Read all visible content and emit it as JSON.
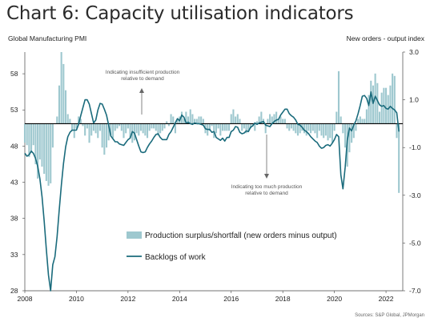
{
  "title": "Chart 6: Capacity utilisation indicators",
  "left_axis_title": "Global Manufacturing PMI",
  "right_axis_title": "New orders - output index",
  "source": "Sources: S&P Global, JPMorgan",
  "colors": {
    "bars": "#9ec8cf",
    "line": "#1a6b7c",
    "zero_line": "#000000"
  },
  "chart_data": {
    "type": "bar",
    "left_axis": {
      "ylim": [
        28,
        61
      ],
      "ticks": [
        28,
        33,
        38,
        43,
        48,
        53,
        58
      ]
    },
    "right_axis": {
      "ylim": [
        -7.0,
        3.0
      ],
      "ticks": [
        "3.0",
        "1.0",
        "-1.0",
        "-3.0",
        "-5.0",
        "-7.0"
      ],
      "tick_values": [
        3,
        1,
        -1,
        -3,
        -5,
        -7
      ]
    },
    "x_ticks": [
      "2008",
      "2010",
      "2012",
      "2014",
      "2016",
      "2018",
      "2020",
      "2022"
    ],
    "xlim": [
      2008.0,
      2022.65
    ],
    "legend": {
      "placement": "bottom-center"
    },
    "annotations": [
      {
        "lines": [
          "Indicating insufficient production",
          "relative to demand"
        ]
      },
      {
        "lines": [
          "Indicating too much production",
          "relative to demand"
        ]
      }
    ],
    "series": [
      {
        "name": "Production surplus/shortfall (new orders minus output)",
        "kind": "bar",
        "axis": "right",
        "x": [
          2008.0,
          2008.083,
          2008.167,
          2008.25,
          2008.333,
          2008.417,
          2008.5,
          2008.583,
          2008.667,
          2008.75,
          2008.833,
          2008.917,
          2009.0,
          2009.083,
          2009.167,
          2009.25,
          2009.333,
          2009.417,
          2009.5,
          2009.583,
          2009.667,
          2009.75,
          2009.833,
          2009.917,
          2010.0,
          2010.083,
          2010.167,
          2010.25,
          2010.333,
          2010.417,
          2010.5,
          2010.583,
          2010.667,
          2010.75,
          2010.833,
          2010.917,
          2011.0,
          2011.083,
          2011.167,
          2011.25,
          2011.333,
          2011.417,
          2011.5,
          2011.583,
          2011.667,
          2011.75,
          2011.833,
          2011.917,
          2012.0,
          2012.083,
          2012.167,
          2012.25,
          2012.333,
          2012.417,
          2012.5,
          2012.583,
          2012.667,
          2012.75,
          2012.833,
          2012.917,
          2013.0,
          2013.083,
          2013.167,
          2013.25,
          2013.333,
          2013.417,
          2013.5,
          2013.583,
          2013.667,
          2013.75,
          2013.833,
          2013.917,
          2014.0,
          2014.083,
          2014.167,
          2014.25,
          2014.333,
          2014.417,
          2014.5,
          2014.583,
          2014.667,
          2014.75,
          2014.833,
          2014.917,
          2015.0,
          2015.083,
          2015.167,
          2015.25,
          2015.333,
          2015.417,
          2015.5,
          2015.583,
          2015.667,
          2015.75,
          2015.833,
          2015.917,
          2016.0,
          2016.083,
          2016.167,
          2016.25,
          2016.333,
          2016.417,
          2016.5,
          2016.583,
          2016.667,
          2016.75,
          2016.833,
          2016.917,
          2017.0,
          2017.083,
          2017.167,
          2017.25,
          2017.333,
          2017.417,
          2017.5,
          2017.583,
          2017.667,
          2017.75,
          2017.833,
          2017.917,
          2018.0,
          2018.083,
          2018.167,
          2018.25,
          2018.333,
          2018.417,
          2018.5,
          2018.583,
          2018.667,
          2018.75,
          2018.833,
          2018.917,
          2019.0,
          2019.083,
          2019.167,
          2019.25,
          2019.333,
          2019.417,
          2019.5,
          2019.583,
          2019.667,
          2019.75,
          2019.833,
          2019.917,
          2020.0,
          2020.083,
          2020.167,
          2020.25,
          2020.333,
          2020.417,
          2020.5,
          2020.583,
          2020.667,
          2020.75,
          2020.833,
          2020.917,
          2021.0,
          2021.083,
          2021.167,
          2021.25,
          2021.333,
          2021.417,
          2021.5,
          2021.583,
          2021.667,
          2021.75,
          2021.833,
          2021.917,
          2022.0,
          2022.083,
          2022.167,
          2022.25,
          2022.333,
          2022.417,
          2022.5
        ],
        "values": [
          -0.8,
          -0.9,
          -1.4,
          -1.2,
          -0.9,
          -1.7,
          -2.3,
          -1.5,
          -1.8,
          -2.1,
          -2.4,
          -2.6,
          -2.5,
          -1.0,
          0.0,
          0.3,
          1.6,
          3.0,
          2.5,
          1.4,
          0.4,
          0.2,
          -0.3,
          -0.6,
          -0.2,
          0.3,
          0.2,
          -0.1,
          -0.5,
          -0.2,
          -0.8,
          -0.5,
          -0.3,
          -0.4,
          -0.6,
          -0.3,
          -1.0,
          -1.3,
          -1.0,
          -0.7,
          -0.5,
          -0.6,
          -0.3,
          -0.2,
          -0.1,
          -0.3,
          -0.6,
          -0.4,
          -0.2,
          -0.6,
          -0.8,
          -0.7,
          -0.4,
          -0.5,
          -0.3,
          -0.4,
          -0.5,
          -0.6,
          -0.3,
          -0.2,
          -0.2,
          -0.3,
          -0.5,
          -0.4,
          -0.3,
          -0.2,
          0.1,
          -0.1,
          0.4,
          0.3,
          -0.4,
          0.2,
          0.3,
          0.5,
          0.2,
          0.5,
          0.3,
          0.6,
          0.4,
          0.2,
          0.2,
          0.3,
          0.3,
          0.2,
          -0.4,
          -0.5,
          -0.3,
          -0.1,
          -0.6,
          -0.4,
          -0.2,
          -0.5,
          -0.3,
          -0.3,
          -0.3,
          -0.3,
          0.4,
          0.6,
          0.3,
          0.4,
          0.2,
          -0.3,
          -0.2,
          -0.4,
          -0.3,
          -0.2,
          -0.1,
          -0.3,
          0.1,
          0.3,
          0.5,
          0.2,
          -0.4,
          0.2,
          0.4,
          0.3,
          0.4,
          0.5,
          0.2,
          0.3,
          0.2,
          0.2,
          -0.2,
          -0.3,
          -0.2,
          -0.3,
          -0.4,
          -0.5,
          -0.4,
          -0.3,
          -0.4,
          -0.5,
          -0.3,
          -0.4,
          -0.3,
          -0.4,
          -0.6,
          -0.3,
          -0.5,
          -0.6,
          -0.5,
          -0.7,
          -0.6,
          -0.8,
          -0.3,
          0.5,
          2.2,
          0.3,
          -0.4,
          -1.0,
          -1.8,
          -1.2,
          -0.8,
          -0.6,
          -0.3,
          0.2,
          0.3,
          0.2,
          0.2,
          0.6,
          1.2,
          1.8,
          1.6,
          2.1,
          1.7,
          0.5,
          1.3,
          1.5,
          1.5,
          1.2,
          1.6,
          2.1,
          2.0,
          -0.6,
          -2.9
        ]
      },
      {
        "name": "Backlogs of work",
        "kind": "line",
        "axis": "left",
        "x": [
          2008.0,
          2008.083,
          2008.167,
          2008.25,
          2008.333,
          2008.417,
          2008.5,
          2008.583,
          2008.667,
          2008.75,
          2008.833,
          2008.917,
          2009.0,
          2009.083,
          2009.167,
          2009.25,
          2009.333,
          2009.417,
          2009.5,
          2009.583,
          2009.667,
          2009.75,
          2009.833,
          2009.917,
          2010.0,
          2010.083,
          2010.167,
          2010.25,
          2010.333,
          2010.417,
          2010.5,
          2010.583,
          2010.667,
          2010.75,
          2010.833,
          2010.917,
          2011.0,
          2011.083,
          2011.167,
          2011.25,
          2011.333,
          2011.417,
          2011.5,
          2011.583,
          2011.667,
          2011.75,
          2011.833,
          2011.917,
          2012.0,
          2012.083,
          2012.167,
          2012.25,
          2012.333,
          2012.417,
          2012.5,
          2012.583,
          2012.667,
          2012.75,
          2012.833,
          2012.917,
          2013.0,
          2013.083,
          2013.167,
          2013.25,
          2013.333,
          2013.417,
          2013.5,
          2013.583,
          2013.667,
          2013.75,
          2013.833,
          2013.917,
          2014.0,
          2014.083,
          2014.167,
          2014.25,
          2014.333,
          2014.417,
          2014.5,
          2014.583,
          2014.667,
          2014.75,
          2014.833,
          2014.917,
          2015.0,
          2015.083,
          2015.167,
          2015.25,
          2015.333,
          2015.417,
          2015.5,
          2015.583,
          2015.667,
          2015.75,
          2015.833,
          2015.917,
          2016.0,
          2016.083,
          2016.167,
          2016.25,
          2016.333,
          2016.417,
          2016.5,
          2016.583,
          2016.667,
          2016.75,
          2016.833,
          2016.917,
          2017.0,
          2017.083,
          2017.167,
          2017.25,
          2017.333,
          2017.417,
          2017.5,
          2017.583,
          2017.667,
          2017.75,
          2017.833,
          2017.917,
          2018.0,
          2018.083,
          2018.167,
          2018.25,
          2018.333,
          2018.417,
          2018.5,
          2018.583,
          2018.667,
          2018.75,
          2018.833,
          2018.917,
          2019.0,
          2019.083,
          2019.167,
          2019.25,
          2019.333,
          2019.417,
          2019.5,
          2019.583,
          2019.667,
          2019.75,
          2019.833,
          2019.917,
          2020.0,
          2020.083,
          2020.167,
          2020.25,
          2020.333,
          2020.417,
          2020.5,
          2020.583,
          2020.667,
          2020.75,
          2020.833,
          2020.917,
          2021.0,
          2021.083,
          2021.167,
          2021.25,
          2021.333,
          2021.417,
          2021.5,
          2021.583,
          2021.667,
          2021.75,
          2021.833,
          2021.917,
          2022.0,
          2022.083,
          2022.167,
          2022.25,
          2022.333,
          2022.417,
          2022.5
        ],
        "values": [
          47.0,
          46.6,
          46.8,
          47.3,
          47.0,
          46.3,
          45.2,
          43.5,
          41.0,
          37.6,
          33.8,
          30.2,
          28.0,
          31.6,
          32.7,
          35.5,
          39.1,
          42.7,
          45.6,
          47.9,
          49.3,
          49.9,
          50.2,
          50.2,
          50.2,
          51.0,
          52.2,
          53.3,
          54.4,
          54.4,
          53.8,
          52.5,
          51.2,
          51.6,
          53.0,
          53.9,
          53.8,
          53.1,
          52.3,
          50.9,
          49.4,
          49.0,
          48.6,
          48.6,
          48.3,
          48.2,
          48.1,
          48.5,
          48.9,
          49.1,
          50.0,
          49.8,
          48.9,
          48.0,
          47.2,
          47.1,
          47.2,
          47.8,
          48.3,
          48.7,
          49.2,
          49.6,
          49.7,
          49.2,
          48.9,
          48.9,
          48.9,
          49.6,
          50.0,
          50.6,
          51.2,
          51.8,
          51.5,
          52.3,
          52.0,
          51.2,
          51.3,
          51.1,
          51.0,
          51.2,
          51.1,
          51.1,
          51.0,
          50.9,
          50.4,
          50.3,
          50.3,
          49.9,
          50.0,
          49.2,
          49.0,
          48.8,
          49.1,
          48.7,
          49.2,
          49.2,
          50.0,
          50.2,
          50.7,
          50.6,
          49.9,
          49.7,
          49.8,
          50.1,
          50.0,
          50.6,
          50.8,
          51.2,
          51.0,
          51.2,
          51.3,
          51.4,
          50.9,
          50.8,
          50.7,
          51.1,
          51.4,
          51.6,
          51.7,
          52.3,
          52.7,
          53.1,
          53.1,
          52.5,
          52.2,
          52.0,
          51.6,
          51.0,
          50.9,
          50.6,
          50.2,
          50.0,
          49.7,
          49.3,
          49.0,
          48.7,
          48.5,
          48.0,
          47.7,
          47.8,
          48.1,
          48.2,
          48.0,
          48.4,
          48.9,
          49.6,
          49.3,
          44.0,
          42.1,
          45.1,
          48.8,
          50.5,
          50.1,
          50.9,
          51.5,
          52.5,
          53.6,
          54.9,
          55.0,
          54.6,
          53.6,
          55.5,
          53.9,
          54.9,
          54.3,
          53.7,
          53.5,
          53.6,
          53.2,
          53.1,
          53.5,
          53.2,
          53.0,
          52.6,
          50.0
        ]
      }
    ]
  }
}
